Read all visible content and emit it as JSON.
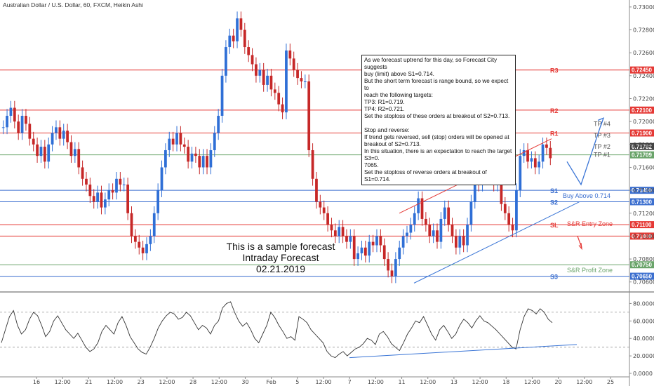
{
  "header": {
    "title": "Australian Dollar / U.S. Dollar, 60, FXCM, Heikin Ashi"
  },
  "note": {
    "lines": [
      "As we forecast uptrend for this day, so Forecast City suggests",
      "buy (limit) above S1=0.714.",
      "But the short term forecast is range bound, so we expect to",
      "reach the following targets:",
      "TP3: R1=0.719.",
      "TP4: R2=0.721.",
      "Set the stoploss of these orders at breakout of S2=0.713.",
      "",
      "Stop and reverse:",
      "If trend gets reversed, sell (stop) orders will be opened at",
      "breakout of S2=0.713.",
      "In this situation, there is an expectation to reach the target S3=0.",
      "7065.",
      "Set the stoploss of reverse orders at breakout of S1=0.714."
    ]
  },
  "sample": {
    "line1": "This is a sample forecast",
    "line2": "Intraday Forecast",
    "line3": "02.21.2019"
  },
  "colors": {
    "resistance": "#e53935",
    "support": "#3c6fcf",
    "target": "#6aa46a",
    "bull": "#2f6fd6",
    "bear": "#c62828",
    "osc": "#333333",
    "trend_blue": "#3a75d6",
    "trend_red": "#e53935"
  },
  "chart_data": {
    "type": "candlestick",
    "price_axis": {
      "min": 0.7058,
      "max": 0.7303,
      "ticks": [
        "0.73000",
        "0.72800",
        "0.72600",
        "0.72400",
        "0.72200",
        "0.72000",
        "0.71800",
        "0.71600",
        "0.71400",
        "0.71200",
        "0.71000",
        "0.70800",
        "0.70600"
      ]
    },
    "levels": [
      {
        "name": "R3",
        "value": 0.7245,
        "tag": "0.72450",
        "kind": "resistance"
      },
      {
        "name": "R2",
        "value": 0.721,
        "tag": "0.72100",
        "kind": "resistance"
      },
      {
        "name": "R1",
        "value": 0.719,
        "tag": "0.71900",
        "kind": "resistance"
      },
      {
        "name": "",
        "value": 0.71782,
        "tag": "0.71782",
        "kind": "price"
      },
      {
        "name": "",
        "value": 0.71709,
        "tag": "0.71709",
        "kind": "target"
      },
      {
        "name": "S1",
        "value": 0.714,
        "tag": "0.71400",
        "kind": "support"
      },
      {
        "name": "S2",
        "value": 0.713,
        "tag": "0.71300",
        "kind": "support"
      },
      {
        "name": "SL",
        "value": 0.711,
        "tag": "0.71100",
        "kind": "resistance"
      },
      {
        "name": "",
        "value": 0.71,
        "tag": "0.71000",
        "kind": "resistance"
      },
      {
        "name": "",
        "value": 0.7075,
        "tag": "0.70750",
        "kind": "target"
      },
      {
        "name": "S3",
        "value": 0.7065,
        "tag": "0.70650",
        "kind": "support"
      }
    ],
    "targets": [
      {
        "label": "TP #4",
        "value": 0.7198
      },
      {
        "label": "TP #3",
        "value": 0.7188
      },
      {
        "label": "TP #2",
        "value": 0.71782
      },
      {
        "label": "TP #1",
        "value": 0.71709
      }
    ],
    "zone_labels": {
      "buy_above": "Buy Above 0.714",
      "entry_zone": "S&R Entry Zone",
      "profit_zone": "S&R Profit Zone"
    },
    "x_labels": [
      "16",
      "12:00",
      "21",
      "12:00",
      "23",
      "12:00",
      "28",
      "12:00",
      "30",
      "Feb",
      "5",
      "12:00",
      "7",
      "12:00",
      "11",
      "12:00",
      "13",
      "12:00",
      "18",
      "12:00",
      "20",
      "12:00",
      "25"
    ],
    "close_path": [
      0.7195,
      0.7205,
      0.7212,
      0.72,
      0.719,
      0.7205,
      0.7198,
      0.7185,
      0.718,
      0.717,
      0.7178,
      0.7165,
      0.718,
      0.719,
      0.7195,
      0.7185,
      0.7192,
      0.7182,
      0.717,
      0.7176,
      0.716,
      0.715,
      0.7145,
      0.7135,
      0.713,
      0.7138,
      0.7125,
      0.7132,
      0.714,
      0.7138,
      0.715,
      0.7145,
      0.7145,
      0.712,
      0.71,
      0.7095,
      0.709,
      0.7085,
      0.7093,
      0.71,
      0.712,
      0.714,
      0.716,
      0.7175,
      0.7185,
      0.718,
      0.719,
      0.718,
      0.7178,
      0.7165,
      0.7172,
      0.717,
      0.716,
      0.717,
      0.716,
      0.7175,
      0.719,
      0.7205,
      0.724,
      0.7265,
      0.7275,
      0.727,
      0.729,
      0.728,
      0.7265,
      0.7258,
      0.725,
      0.724,
      0.7245,
      0.7232,
      0.724,
      0.7228,
      0.7225,
      0.7215,
      0.7208,
      0.7262,
      0.7255,
      0.7245,
      0.7238,
      0.7235,
      0.7235,
      0.7175,
      0.715,
      0.713,
      0.7125,
      0.712,
      0.711,
      0.7105,
      0.71,
      0.7108,
      0.71,
      0.7095,
      0.71,
      0.708,
      0.7085,
      0.709,
      0.7083,
      0.7095,
      0.7092,
      0.71,
      0.7092,
      0.708,
      0.707,
      0.7065,
      0.708,
      0.709,
      0.71,
      0.7103,
      0.711,
      0.712,
      0.7133,
      0.7115,
      0.711,
      0.71,
      0.7105,
      0.7095,
      0.7115,
      0.7125,
      0.711,
      0.71,
      0.709,
      0.71,
      0.7092,
      0.711,
      0.713,
      0.715,
      0.7145,
      0.7155,
      0.716,
      0.7153,
      0.7145,
      0.715,
      0.7128,
      0.712,
      0.711,
      0.7105,
      0.714,
      0.717,
      0.7175,
      0.7165,
      0.7168,
      0.716,
      0.7165,
      0.718,
      0.7177,
      0.7168
    ],
    "oscillator": {
      "ticks": [
        "80.0000",
        "60.0000",
        "40.0000",
        "20.0000",
        "0.0000"
      ],
      "min": 0,
      "max": 90,
      "levels": [
        70,
        30
      ],
      "values": [
        35,
        50,
        65,
        72,
        55,
        45,
        50,
        62,
        70,
        66,
        55,
        42,
        48,
        60,
        66,
        58,
        50,
        45,
        40,
        46,
        38,
        30,
        25,
        28,
        35,
        48,
        55,
        50,
        45,
        58,
        65,
        55,
        42,
        35,
        28,
        24,
        22,
        30,
        40,
        52,
        60,
        66,
        70,
        68,
        62,
        64,
        70,
        66,
        58,
        50,
        55,
        52,
        45,
        55,
        60,
        75,
        80,
        82,
        70,
        60,
        54,
        58,
        50,
        40,
        35,
        45,
        55,
        70,
        64,
        55,
        48,
        40,
        42,
        38,
        65,
        62,
        58,
        50,
        45,
        40,
        35,
        25,
        20,
        18,
        22,
        25,
        20,
        24,
        28,
        30,
        34,
        40,
        38,
        33,
        45,
        48,
        42,
        34,
        30,
        26,
        35,
        45,
        52,
        60,
        58,
        65,
        55,
        45,
        38,
        50,
        55,
        48,
        40,
        45,
        55,
        62,
        58,
        52,
        60,
        66,
        60,
        58,
        54,
        50,
        45,
        40,
        35,
        30,
        28,
        50,
        65,
        74,
        72,
        68,
        74,
        70,
        62,
        58
      ]
    }
  }
}
